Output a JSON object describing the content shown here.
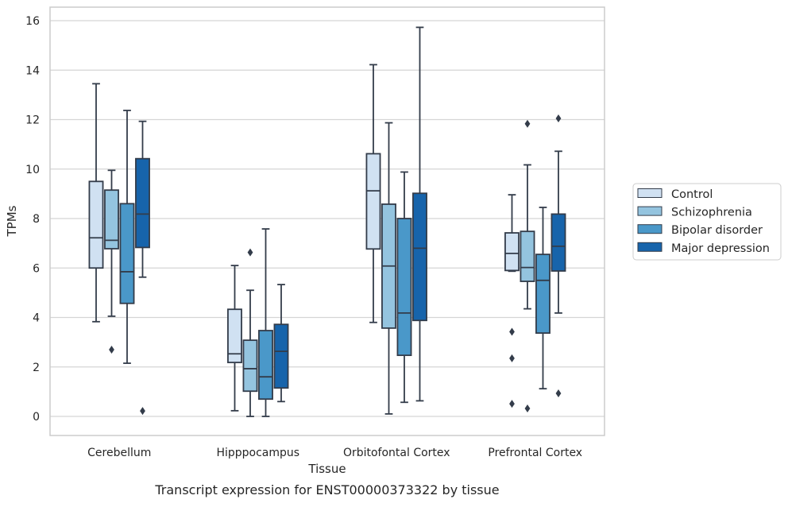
{
  "caption": "Transcript expression for ENST00000373322 by tissue",
  "chart_data": {
    "type": "box",
    "xlabel": "Tissue",
    "ylabel": "TPMs",
    "ylim": [
      -0.8,
      16.55
    ],
    "yticks": [
      0,
      2,
      4,
      6,
      8,
      10,
      12,
      14,
      16
    ],
    "grid": "horizontal",
    "legend_position": "right",
    "categories": [
      "Cerebellum",
      "Hipppocampus",
      "Orbitofontal Cortex",
      "Prefrontal Cortex"
    ],
    "series": [
      {
        "name": "Control",
        "color": "#d0e1f2",
        "boxes": [
          {
            "whisker_low": 3.83,
            "q1": 6.0,
            "median": 7.22,
            "q3": 9.5,
            "whisker_high": 13.45,
            "outliers": []
          },
          {
            "whisker_low": 0.23,
            "q1": 2.18,
            "median": 2.53,
            "q3": 4.33,
            "whisker_high": 6.1,
            "outliers": []
          },
          {
            "whisker_low": 3.8,
            "q1": 6.77,
            "median": 9.12,
            "q3": 10.62,
            "whisker_high": 14.22,
            "outliers": []
          },
          {
            "whisker_low": 5.87,
            "q1": 5.9,
            "median": 6.59,
            "q3": 7.42,
            "whisker_high": 8.96,
            "outliers": [
              3.42,
              2.35,
              0.51
            ]
          }
        ]
      },
      {
        "name": "Schizophrenia",
        "color": "#94c4df",
        "boxes": [
          {
            "whisker_low": 4.05,
            "q1": 6.78,
            "median": 7.12,
            "q3": 9.15,
            "whisker_high": 9.95,
            "outliers": [
              2.7
            ]
          },
          {
            "whisker_low": 0.0,
            "q1": 1.02,
            "median": 1.93,
            "q3": 3.08,
            "whisker_high": 5.1,
            "outliers": [
              6.63
            ]
          },
          {
            "whisker_low": 0.1,
            "q1": 3.57,
            "median": 6.08,
            "q3": 8.58,
            "whisker_high": 11.87,
            "outliers": []
          },
          {
            "whisker_low": 4.35,
            "q1": 5.46,
            "median": 6.02,
            "q3": 7.48,
            "whisker_high": 10.17,
            "outliers": [
              11.83,
              0.32
            ]
          }
        ]
      },
      {
        "name": "Bipolar disorder",
        "color": "#4a98c9",
        "boxes": [
          {
            "whisker_low": 2.15,
            "q1": 4.57,
            "median": 5.85,
            "q3": 8.6,
            "whisker_high": 12.37,
            "outliers": []
          },
          {
            "whisker_low": 0.0,
            "q1": 0.7,
            "median": 1.6,
            "q3": 3.47,
            "whisker_high": 7.58,
            "outliers": []
          },
          {
            "whisker_low": 0.57,
            "q1": 2.47,
            "median": 4.18,
            "q3": 8.0,
            "whisker_high": 9.88,
            "outliers": []
          },
          {
            "whisker_low": 1.12,
            "q1": 3.37,
            "median": 5.5,
            "q3": 6.55,
            "whisker_high": 8.45,
            "outliers": []
          }
        ]
      },
      {
        "name": "Major depression",
        "color": "#1764ab",
        "boxes": [
          {
            "whisker_low": 5.63,
            "q1": 6.83,
            "median": 8.18,
            "q3": 10.42,
            "whisker_high": 11.93,
            "outliers": [
              0.22
            ]
          },
          {
            "whisker_low": 0.6,
            "q1": 1.15,
            "median": 2.63,
            "q3": 3.72,
            "whisker_high": 5.33,
            "outliers": []
          },
          {
            "whisker_low": 0.63,
            "q1": 3.88,
            "median": 6.8,
            "q3": 9.02,
            "whisker_high": 15.73,
            "outliers": []
          },
          {
            "whisker_low": 4.18,
            "q1": 5.88,
            "median": 6.88,
            "q3": 8.18,
            "whisker_high": 10.72,
            "outliers": [
              12.05,
              0.93
            ]
          }
        ]
      }
    ]
  }
}
